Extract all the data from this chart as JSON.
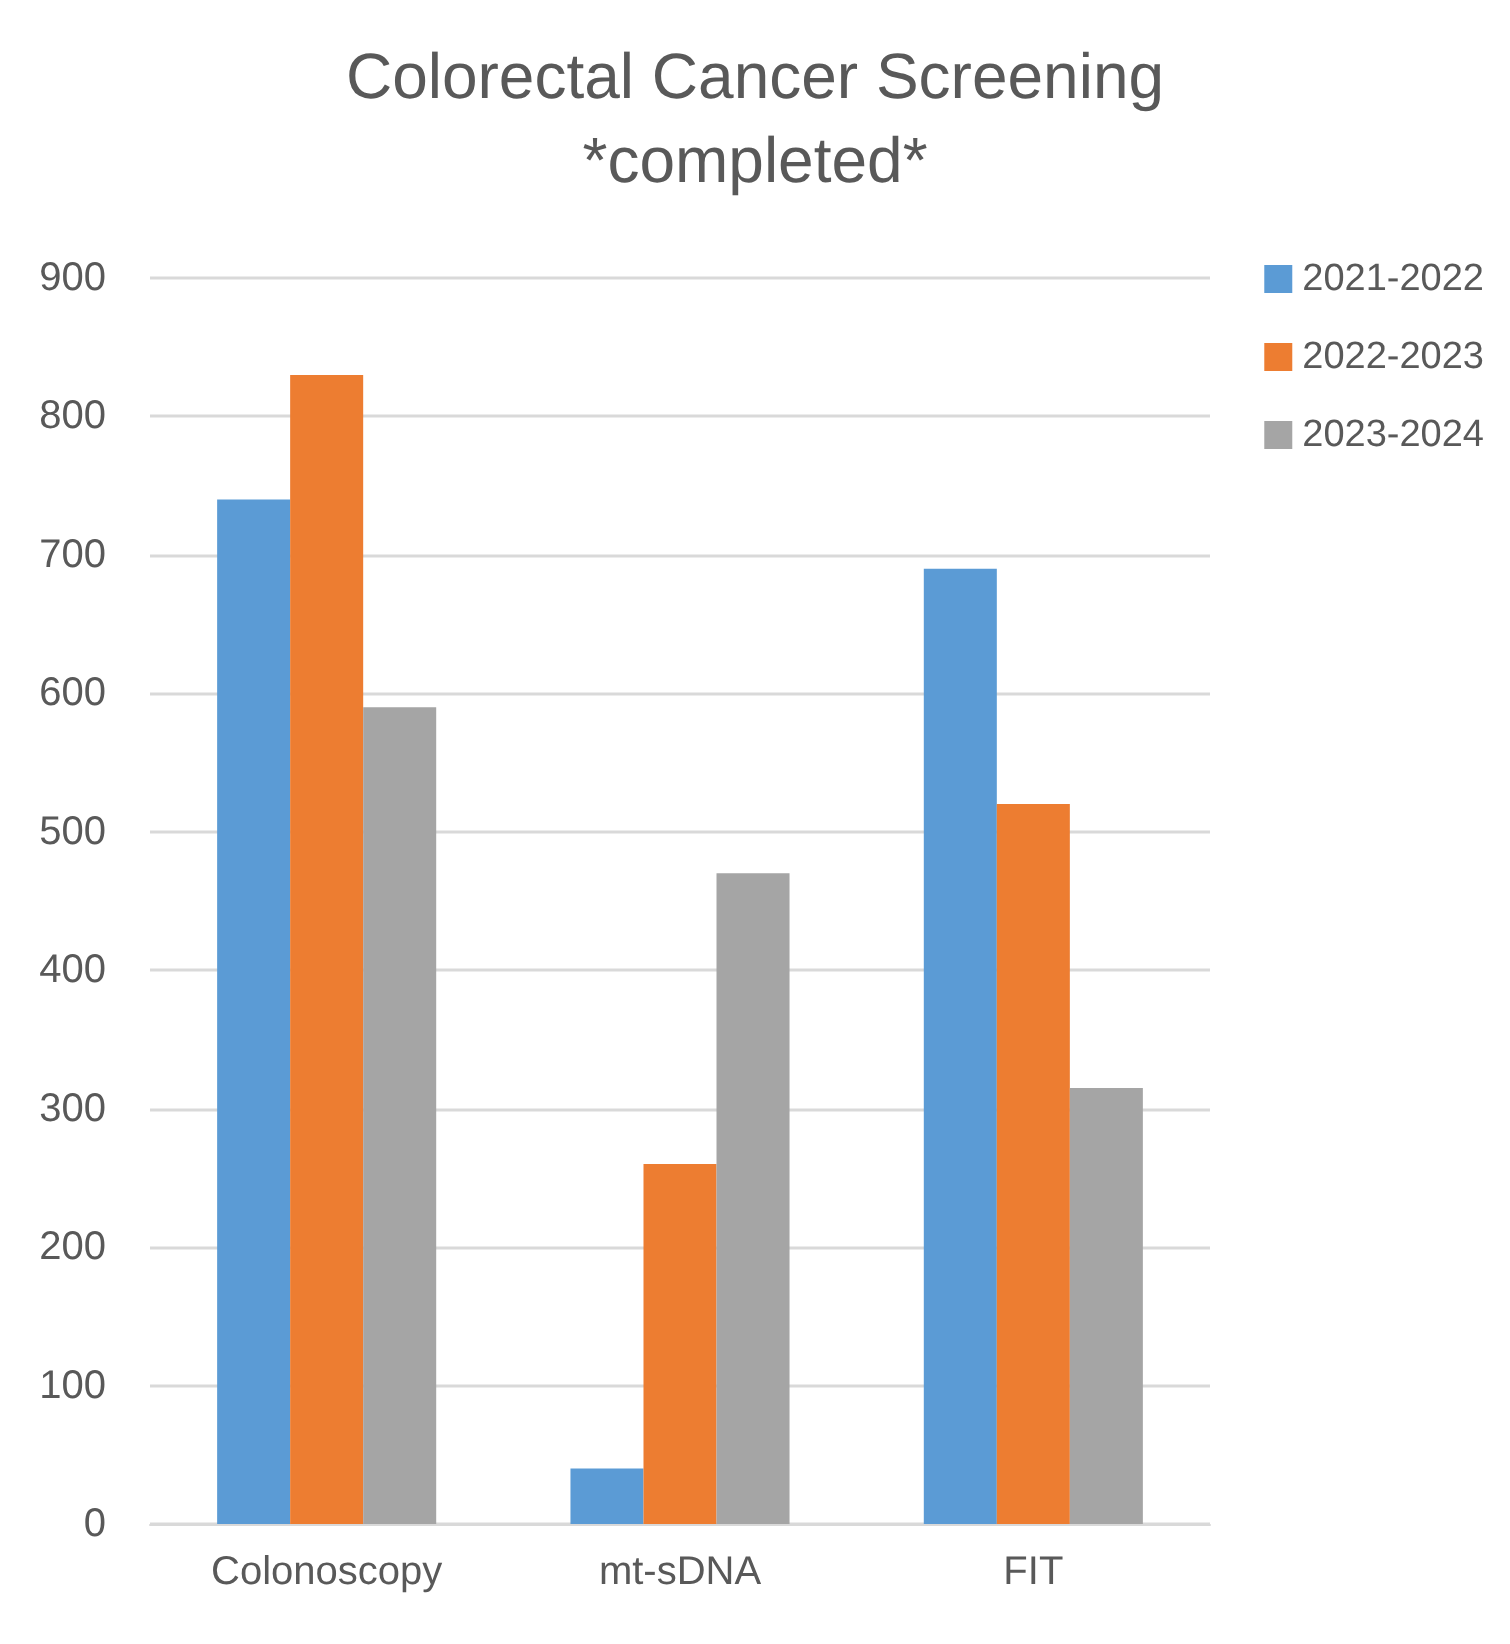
{
  "chart_data": {
    "type": "bar",
    "title": "Colorectal Cancer Screening\n*completed*",
    "categories": [
      "Colonoscopy",
      "mt-sDNA",
      "FIT"
    ],
    "series": [
      {
        "name": "2021-2022",
        "color": "#5b9bd5",
        "values": [
          740,
          40,
          690
        ]
      },
      {
        "name": "2022-2023",
        "color": "#ed7d31",
        "values": [
          830,
          260,
          520
        ]
      },
      {
        "name": "2023-2024",
        "color": "#a5a5a5",
        "values": [
          590,
          470,
          315
        ]
      }
    ],
    "ylim": [
      0,
      900
    ],
    "yticks": [
      0,
      100,
      200,
      300,
      400,
      500,
      600,
      700,
      800,
      900
    ],
    "grid": "y",
    "legend": "top right"
  }
}
